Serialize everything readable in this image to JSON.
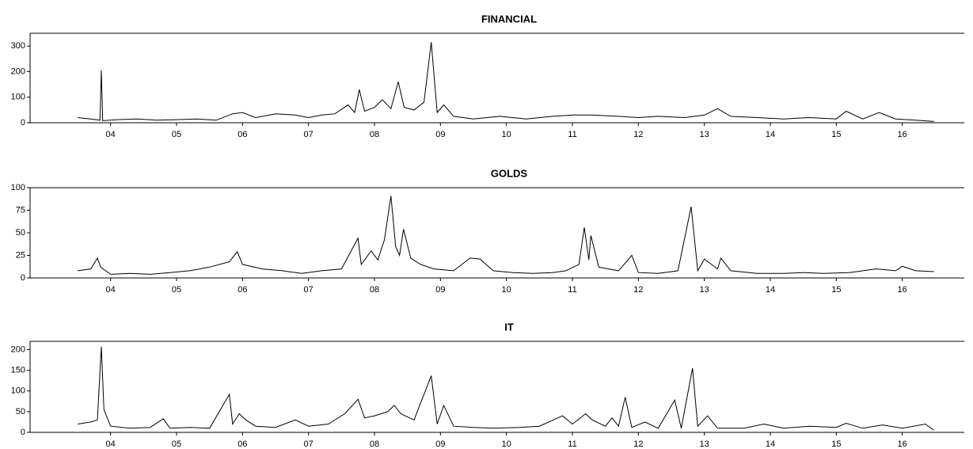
{
  "chart_data": [
    {
      "type": "line",
      "title": "FINANCIAL",
      "color": "#000000",
      "x": [
        3.5,
        3.7,
        3.84,
        3.86,
        3.88,
        4.1,
        4.4,
        4.7,
        5.0,
        5.3,
        5.6,
        5.85,
        6.0,
        6.2,
        6.5,
        6.8,
        7.0,
        7.2,
        7.4,
        7.6,
        7.7,
        7.77,
        7.85,
        8.0,
        8.12,
        8.25,
        8.36,
        8.45,
        8.6,
        8.75,
        8.86,
        8.95,
        9.05,
        9.2,
        9.5,
        9.9,
        10.3,
        10.7,
        11.0,
        11.3,
        11.7,
        12.0,
        12.3,
        12.7,
        13.0,
        13.2,
        13.4,
        13.8,
        14.2,
        14.6,
        15.0,
        15.15,
        15.4,
        15.65,
        15.9,
        16.2,
        16.48
      ],
      "values": [
        20,
        15,
        10,
        205,
        8,
        12,
        15,
        10,
        12,
        15,
        10,
        35,
        40,
        20,
        35,
        30,
        20,
        30,
        35,
        70,
        40,
        130,
        45,
        60,
        90,
        55,
        160,
        60,
        50,
        80,
        315,
        40,
        70,
        25,
        15,
        25,
        15,
        25,
        30,
        30,
        25,
        20,
        25,
        20,
        30,
        55,
        25,
        20,
        15,
        20,
        15,
        45,
        15,
        40,
        15,
        10,
        5
      ],
      "xlim": [
        2.78,
        16.94
      ],
      "xticks": [
        {
          "value": 4,
          "label": "04"
        },
        {
          "value": 5,
          "label": "05"
        },
        {
          "value": 6,
          "label": "06"
        },
        {
          "value": 7,
          "label": "07"
        },
        {
          "value": 8,
          "label": "08"
        },
        {
          "value": 9,
          "label": "09"
        },
        {
          "value": 10,
          "label": "10"
        },
        {
          "value": 11,
          "label": "11"
        },
        {
          "value": 12,
          "label": "12"
        },
        {
          "value": 13,
          "label": "13"
        },
        {
          "value": 14,
          "label": "14"
        },
        {
          "value": 15,
          "label": "15"
        },
        {
          "value": 16,
          "label": "16"
        }
      ],
      "ylim": [
        0,
        350
      ],
      "yticks": [
        0,
        100,
        200,
        300
      ]
    },
    {
      "type": "line",
      "title": "GOLDS",
      "color": "#000000",
      "x": [
        3.5,
        3.7,
        3.8,
        3.85,
        4.0,
        4.3,
        4.6,
        4.9,
        5.2,
        5.5,
        5.8,
        5.92,
        6.0,
        6.3,
        6.6,
        6.9,
        7.2,
        7.5,
        7.75,
        7.8,
        7.95,
        8.05,
        8.15,
        8.25,
        8.32,
        8.38,
        8.44,
        8.55,
        8.7,
        8.9,
        9.2,
        9.45,
        9.6,
        9.8,
        10.1,
        10.4,
        10.7,
        10.9,
        11.1,
        11.18,
        11.25,
        11.28,
        11.4,
        11.7,
        11.9,
        12.0,
        12.3,
        12.6,
        12.8,
        12.9,
        13.0,
        13.2,
        13.25,
        13.4,
        13.8,
        14.2,
        14.5,
        14.8,
        15.2,
        15.6,
        15.9,
        16.0,
        16.2,
        16.48
      ],
      "values": [
        8,
        10,
        22,
        12,
        4,
        5,
        4,
        6,
        8,
        12,
        18,
        29,
        15,
        10,
        8,
        5,
        8,
        10,
        44,
        15,
        30,
        20,
        42,
        91,
        35,
        25,
        54,
        22,
        15,
        10,
        8,
        22,
        21,
        8,
        6,
        5,
        6,
        8,
        15,
        56,
        20,
        47,
        12,
        8,
        25,
        6,
        5,
        8,
        79,
        8,
        21,
        10,
        22,
        8,
        5,
        5,
        6,
        5,
        6,
        10,
        8,
        13,
        8,
        7
      ],
      "xlim": [
        2.78,
        16.94
      ],
      "xticks": [
        {
          "value": 4,
          "label": "04"
        },
        {
          "value": 5,
          "label": "05"
        },
        {
          "value": 6,
          "label": "06"
        },
        {
          "value": 7,
          "label": "07"
        },
        {
          "value": 8,
          "label": "08"
        },
        {
          "value": 9,
          "label": "09"
        },
        {
          "value": 10,
          "label": "10"
        },
        {
          "value": 11,
          "label": "11"
        },
        {
          "value": 12,
          "label": "12"
        },
        {
          "value": 13,
          "label": "13"
        },
        {
          "value": 14,
          "label": "14"
        },
        {
          "value": 15,
          "label": "15"
        },
        {
          "value": 16,
          "label": "16"
        }
      ],
      "ylim": [
        0,
        100
      ],
      "yticks": [
        0,
        25,
        50,
        75,
        100
      ]
    },
    {
      "type": "line",
      "title": "IT",
      "color": "#000000",
      "x": [
        3.5,
        3.7,
        3.8,
        3.86,
        3.9,
        4.0,
        4.3,
        4.6,
        4.8,
        4.9,
        5.2,
        5.5,
        5.8,
        5.85,
        5.95,
        6.05,
        6.2,
        6.5,
        6.8,
        7.0,
        7.3,
        7.55,
        7.75,
        7.85,
        8.0,
        8.2,
        8.3,
        8.4,
        8.6,
        8.86,
        8.95,
        9.05,
        9.2,
        9.5,
        9.8,
        10.2,
        10.5,
        10.85,
        11.0,
        11.2,
        11.3,
        11.5,
        11.6,
        11.7,
        11.8,
        11.9,
        12.1,
        12.3,
        12.55,
        12.65,
        12.82,
        12.9,
        13.05,
        13.2,
        13.6,
        13.9,
        14.2,
        14.6,
        15.0,
        15.15,
        15.4,
        15.7,
        16.0,
        16.35,
        16.48
      ],
      "values": [
        20,
        25,
        30,
        207,
        55,
        15,
        10,
        12,
        33,
        10,
        12,
        10,
        92,
        20,
        45,
        30,
        15,
        12,
        30,
        15,
        20,
        45,
        80,
        35,
        40,
        50,
        65,
        45,
        30,
        137,
        20,
        65,
        15,
        12,
        10,
        12,
        15,
        40,
        20,
        45,
        30,
        15,
        35,
        15,
        85,
        12,
        25,
        10,
        78,
        10,
        155,
        15,
        40,
        10,
        10,
        20,
        10,
        15,
        12,
        22,
        10,
        18,
        10,
        20,
        5
      ],
      "xlim": [
        2.78,
        16.94
      ],
      "xticks": [
        {
          "value": 4,
          "label": "04"
        },
        {
          "value": 5,
          "label": "05"
        },
        {
          "value": 6,
          "label": "06"
        },
        {
          "value": 7,
          "label": "07"
        },
        {
          "value": 8,
          "label": "08"
        },
        {
          "value": 9,
          "label": "09"
        },
        {
          "value": 10,
          "label": "10"
        },
        {
          "value": 11,
          "label": "11"
        },
        {
          "value": 12,
          "label": "12"
        },
        {
          "value": 13,
          "label": "13"
        },
        {
          "value": 14,
          "label": "14"
        },
        {
          "value": 15,
          "label": "15"
        },
        {
          "value": 16,
          "label": "16"
        }
      ],
      "ylim": [
        0,
        220
      ],
      "yticks": [
        0,
        50,
        100,
        150,
        200
      ]
    }
  ]
}
